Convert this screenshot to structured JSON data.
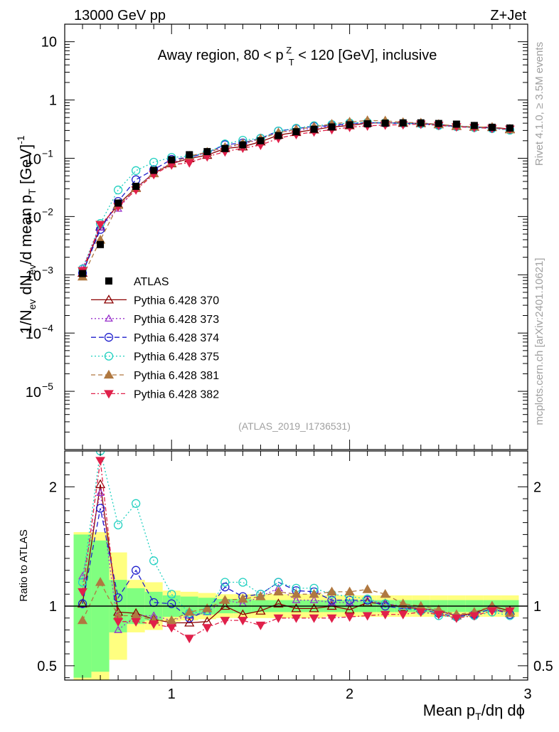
{
  "header": {
    "left": "13000 GeV pp",
    "right": "Z+Jet"
  },
  "side_labels": {
    "rivet": "Rivet 4.1.0, ≥ 3.5M events",
    "mcplots": "mcplots.cern.ch [arXiv:2401.10621]"
  },
  "chart_data": {
    "type": "scatter",
    "title": "Away region, 80 < p_T^Z < 120 [GeV], inclusive",
    "analysis_id": "(ATLAS_2019_I1736531)",
    "xlabel": "Mean p_T/dη dϕ",
    "ylabel_main": "1/N_ev dN_ev/d mean p_T [GeV]^-1",
    "ylabel_ratio": "Ratio to ATLAS",
    "xlim": [
      0.4,
      3.0
    ],
    "ylim_main": [
      1e-06,
      20
    ],
    "ylim_ratio": [
      0.38,
      2.3
    ],
    "x_ticks": [
      {
        "v": 1,
        "label": "1"
      },
      {
        "v": 2,
        "label": "2"
      },
      {
        "v": 3,
        "label": "3"
      }
    ],
    "y_ticks_main": [
      {
        "v": 10,
        "base": "10",
        "exp": ""
      },
      {
        "v": 1,
        "base": "1",
        "exp": ""
      },
      {
        "v": 0.1,
        "base": "10",
        "exp": "−1"
      },
      {
        "v": 0.01,
        "base": "10",
        "exp": "−2"
      },
      {
        "v": 0.001,
        "base": "10",
        "exp": "−3"
      },
      {
        "v": 0.0001,
        "base": "10",
        "exp": "−4"
      },
      {
        "v": 1e-05,
        "base": "10",
        "exp": "−5"
      }
    ],
    "y_ticks_ratio": [
      {
        "v": 2,
        "label": "2"
      },
      {
        "v": 1,
        "label": "1"
      },
      {
        "v": 0.5,
        "label": "0.5"
      }
    ],
    "x": [
      0.5,
      0.6,
      0.7,
      0.8,
      0.9,
      1.0,
      1.1,
      1.2,
      1.3,
      1.4,
      1.5,
      1.6,
      1.7,
      1.8,
      1.9,
      2.0,
      2.1,
      2.2,
      2.3,
      2.4,
      2.5,
      2.6,
      2.7,
      2.8,
      2.9
    ],
    "data": {
      "name": "ATLAS",
      "values": [
        0.00105,
        0.0033,
        0.017,
        0.033,
        0.062,
        0.094,
        0.115,
        0.13,
        0.147,
        0.17,
        0.2,
        0.245,
        0.285,
        0.315,
        0.345,
        0.375,
        0.39,
        0.4,
        0.405,
        0.405,
        0.395,
        0.385,
        0.365,
        0.34,
        0.33
      ],
      "band_stat": [
        0.6,
        0.55,
        0.22,
        0.15,
        0.12,
        0.09,
        0.08,
        0.07,
        0.06,
        0.06,
        0.05,
        0.05,
        0.05,
        0.05,
        0.05,
        0.05,
        0.05,
        0.05,
        0.05,
        0.05,
        0.05,
        0.05,
        0.05,
        0.05,
        0.05
      ],
      "band_total": [
        0.62,
        0.62,
        0.45,
        0.22,
        0.2,
        0.13,
        0.12,
        0.11,
        0.1,
        0.1,
        0.1,
        0.1,
        0.1,
        0.1,
        0.09,
        0.09,
        0.09,
        0.09,
        0.09,
        0.09,
        0.09,
        0.09,
        0.09,
        0.09,
        0.09
      ]
    },
    "series": [
      {
        "name": "Pythia 6.428 370",
        "color": "#8b0000",
        "marker": "triangle-open",
        "dash": "",
        "ratio": [
          1.02,
          2.02,
          0.95,
          0.94,
          0.89,
          0.86,
          0.86,
          0.87,
          1.0,
          0.93,
          0.96,
          1.02,
          0.98,
          0.98,
          1.0,
          0.97,
          1.03,
          1.02,
          0.99,
          0.98,
          0.96,
          0.92,
          0.94,
          1.0,
          0.96
        ]
      },
      {
        "name": "Pythia 6.428 373",
        "color": "#9932cc",
        "marker": "triangle-open-small",
        "dash": "2,3",
        "ratio": [
          1.25,
          1.95,
          0.8,
          0.92,
          0.92,
          0.88,
          0.92,
          0.95,
          1.05,
          1.02,
          1.08,
          1.15,
          1.05,
          1.05,
          1.03,
          1.03,
          1.05,
          1.02,
          1.0,
          0.98,
          0.96,
          0.92,
          0.93,
          0.98,
          0.95
        ]
      },
      {
        "name": "Pythia 6.428 374",
        "color": "#1e1ecc",
        "marker": "circle-open",
        "dash": "7,4",
        "ratio": [
          1.02,
          1.82,
          1.07,
          1.3,
          1.03,
          1.02,
          0.9,
          0.96,
          1.16,
          1.08,
          1.1,
          1.2,
          1.13,
          1.12,
          1.05,
          1.05,
          1.05,
          1.0,
          0.98,
          0.97,
          0.94,
          0.91,
          0.93,
          0.98,
          0.93
        ]
      },
      {
        "name": "Pythia 6.428 375",
        "color": "#20d0c0",
        "marker": "circle-open",
        "dash": "2,3",
        "ratio": [
          1.2,
          2.3,
          1.68,
          1.86,
          1.38,
          1.1,
          0.94,
          0.96,
          1.2,
          1.2,
          1.1,
          1.2,
          1.15,
          1.15,
          1.1,
          1.08,
          1.06,
          1.02,
          0.98,
          0.96,
          0.92,
          0.91,
          0.92,
          0.95,
          0.92
        ]
      },
      {
        "name": "Pythia 6.428 381",
        "color": "#b07840",
        "marker": "triangle-filled",
        "dash": "6,4",
        "ratio": [
          0.88,
          1.2,
          0.92,
          0.92,
          0.88,
          0.88,
          0.95,
          0.98,
          1.05,
          1.06,
          1.08,
          1.12,
          1.1,
          1.1,
          1.12,
          1.12,
          1.14,
          1.1,
          1.02,
          1.0,
          0.97,
          0.93,
          0.95,
          1.0,
          0.94
        ]
      },
      {
        "name": "Pythia 6.428 382",
        "color": "#e0204a",
        "marker": "triangle-down-filled",
        "dash": "6,3,2,3",
        "ratio": [
          1.12,
          2.22,
          0.87,
          0.87,
          0.85,
          0.82,
          0.73,
          0.82,
          0.88,
          0.88,
          0.84,
          0.9,
          0.9,
          0.9,
          0.9,
          0.91,
          0.92,
          0.93,
          0.93,
          0.95,
          0.93,
          0.9,
          0.92,
          0.96,
          0.96
        ]
      }
    ]
  }
}
